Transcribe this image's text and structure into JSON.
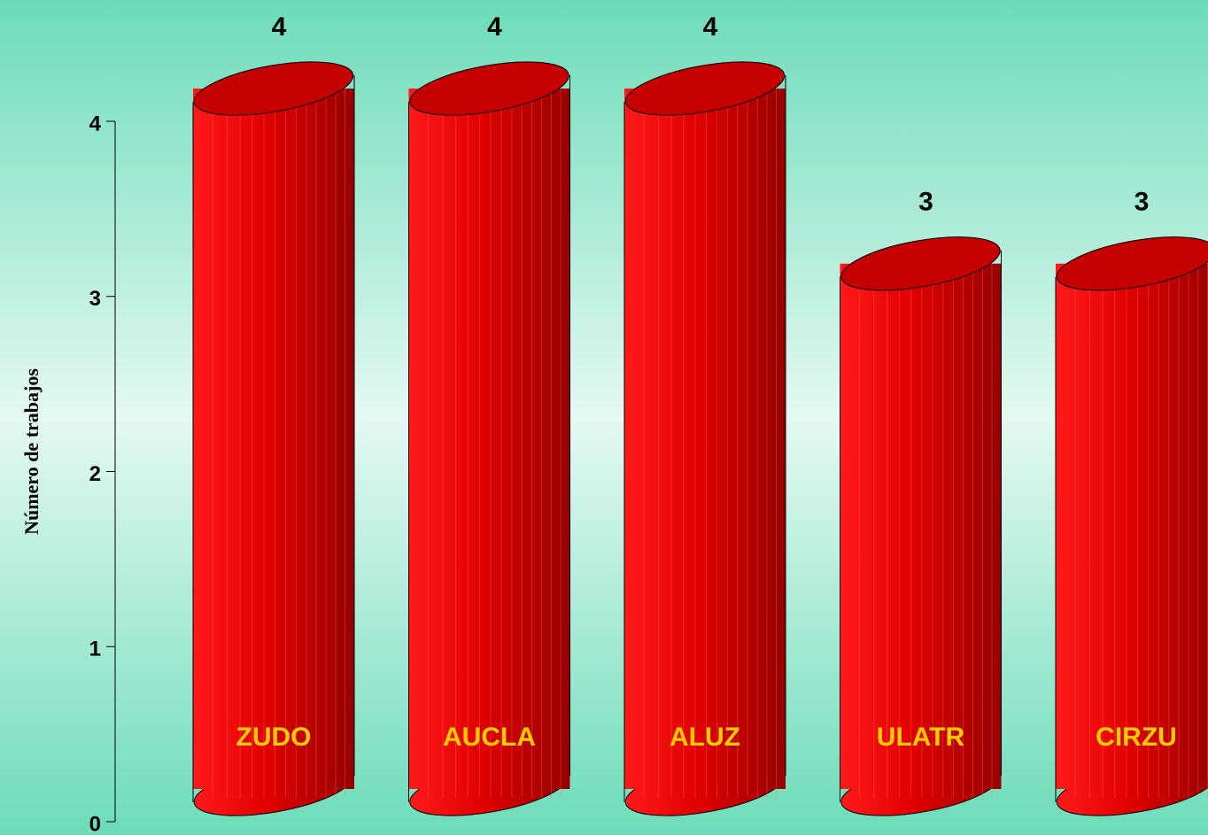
{
  "chart_data": {
    "type": "bar",
    "categories": [
      "ZUDO",
      "AUCLA",
      "ALUZ",
      "ULATR",
      "CIRZU"
    ],
    "values": [
      4,
      4,
      4,
      3,
      3
    ],
    "y_label": "Número de trabajos",
    "ylim": [
      0,
      4
    ],
    "yticks": [
      0,
      1,
      2,
      3,
      4
    ],
    "color": "#ff0000",
    "label_color": "#ffcc00",
    "grid": false
  }
}
